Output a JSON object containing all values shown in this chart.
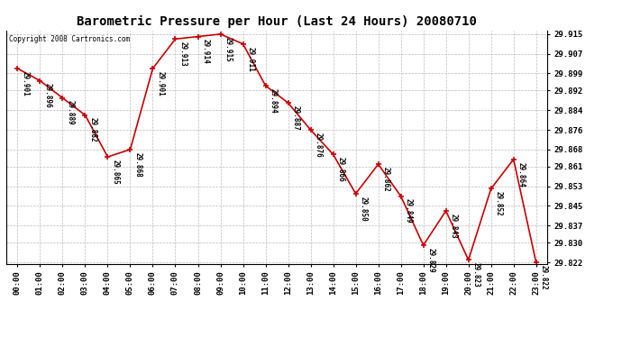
{
  "title": "Barometric Pressure per Hour (Last 24 Hours) 20080710",
  "copyright": "Copyright 2008 Cartronics.com",
  "hours": [
    "00:00",
    "01:00",
    "02:00",
    "03:00",
    "04:00",
    "05:00",
    "06:00",
    "07:00",
    "08:00",
    "09:00",
    "10:00",
    "11:00",
    "12:00",
    "13:00",
    "14:00",
    "15:00",
    "16:00",
    "17:00",
    "18:00",
    "19:00",
    "20:00",
    "21:00",
    "22:00",
    "23:00"
  ],
  "values": [
    29.901,
    29.896,
    29.889,
    29.882,
    29.865,
    29.868,
    29.901,
    29.913,
    29.914,
    29.915,
    29.911,
    29.894,
    29.887,
    29.876,
    29.866,
    29.85,
    29.862,
    29.849,
    29.829,
    29.843,
    29.823,
    29.852,
    29.864,
    29.822
  ],
  "ylim_min": 29.8215,
  "ylim_max": 29.9165,
  "line_color": "#cc0000",
  "marker_color": "#cc0000",
  "background_color": "#ffffff",
  "grid_color": "#bbbbbb",
  "title_fontsize": 10,
  "label_fontsize": 5.5,
  "tick_fontsize": 6.5,
  "copyright_fontsize": 5.5,
  "yticks": [
    29.822,
    29.83,
    29.837,
    29.845,
    29.853,
    29.861,
    29.868,
    29.876,
    29.884,
    29.892,
    29.899,
    29.907,
    29.915
  ]
}
